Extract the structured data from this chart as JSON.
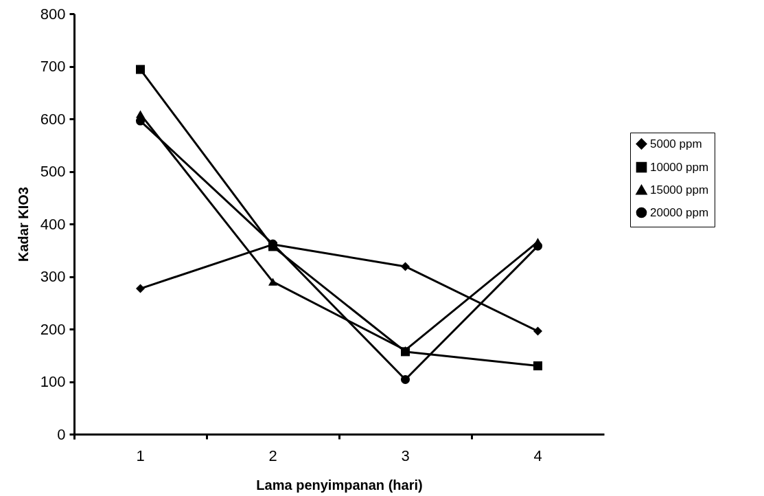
{
  "chart_data": {
    "type": "line",
    "xlabel": "Lama penyimpanan (hari)",
    "ylabel": "Kadar KIO3",
    "categories": [
      "1",
      "2",
      "3",
      "4"
    ],
    "series": [
      {
        "name": "5000 ppm",
        "color": "#000000",
        "marker": "diamond",
        "values": [
          277,
          361,
          319,
          196
        ]
      },
      {
        "name": "10000 ppm",
        "color": "#000000",
        "marker": "square",
        "values": [
          694,
          357,
          157,
          130
        ]
      },
      {
        "name": "15000 ppm",
        "color": "#000000",
        "marker": "triangle",
        "values": [
          609,
          290,
          160,
          366
        ]
      },
      {
        "name": "20000 ppm",
        "color": "#000000",
        "marker": "circle",
        "values": [
          596,
          362,
          104,
          358
        ]
      }
    ],
    "ylim": [
      0,
      800
    ],
    "yticks": [
      0,
      100,
      200,
      300,
      400,
      500,
      600,
      700,
      800
    ],
    "grid": false,
    "legend": "right",
    "line_style": "solid"
  }
}
